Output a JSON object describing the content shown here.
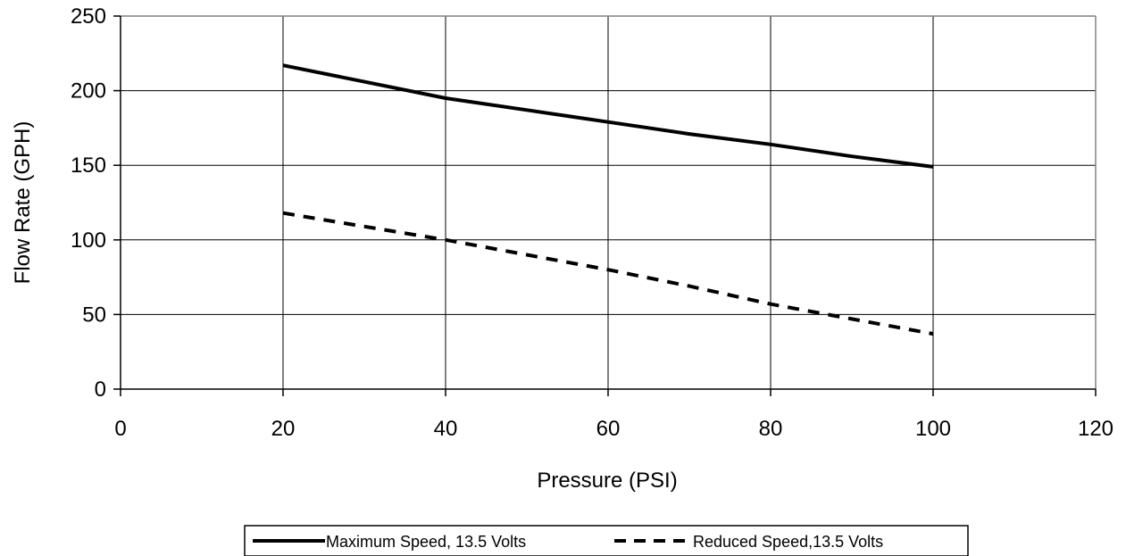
{
  "chart_data": {
    "type": "line",
    "title": "",
    "xlabel": "Pressure (PSI)",
    "ylabel": "Flow Rate (GPH)",
    "xlim": [
      0,
      120
    ],
    "ylim": [
      0,
      250
    ],
    "x_ticks": [
      "0",
      "20",
      "40",
      "60",
      "80",
      "100",
      "120"
    ],
    "y_ticks": [
      "0",
      "50",
      "100",
      "150",
      "200",
      "250"
    ],
    "grid": true,
    "legend_position": "bottom-center",
    "series": [
      {
        "name": "Maximum Speed, 13.5 Volts",
        "style": "solid",
        "color": "#000000",
        "x": [
          20,
          30,
          40,
          50,
          60,
          70,
          80,
          90,
          100
        ],
        "y": [
          217,
          206,
          195,
          187,
          179,
          171,
          164,
          156,
          149
        ]
      },
      {
        "name": "Reduced Speed,13.5 Volts",
        "style": "dashed",
        "color": "#000000",
        "x": [
          20,
          30,
          40,
          50,
          60,
          70,
          80,
          90,
          100
        ],
        "y": [
          118,
          109,
          100,
          90,
          80,
          69,
          57,
          47,
          37
        ]
      }
    ]
  }
}
